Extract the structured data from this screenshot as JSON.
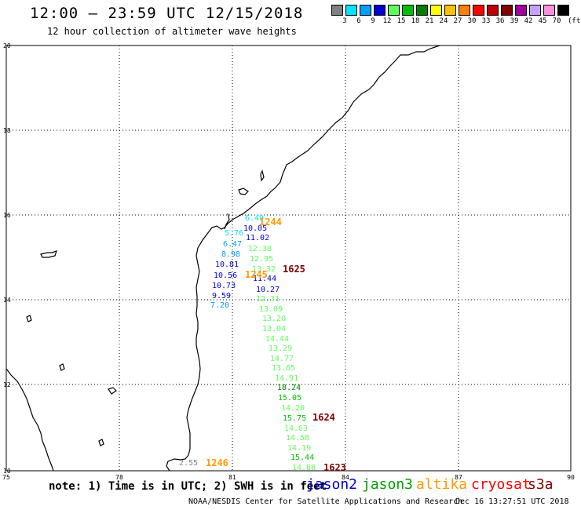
{
  "header": {
    "title": "12:00 – 23:59 UTC 12/15/2018",
    "subtitle": "12 hour collection of altimeter wave heights"
  },
  "legend": {
    "unit": "(ft)",
    "bins": [
      {
        "label": "3",
        "color": "#808080"
      },
      {
        "label": "6",
        "color": "#00e5ff"
      },
      {
        "label": "9",
        "color": "#00a0ff"
      },
      {
        "label": "12",
        "color": "#0000d0"
      },
      {
        "label": "15",
        "color": "#60ff60"
      },
      {
        "label": "18",
        "color": "#00c000"
      },
      {
        "label": "21",
        "color": "#008000"
      },
      {
        "label": "24",
        "color": "#ffff00"
      },
      {
        "label": "27",
        "color": "#ffc000"
      },
      {
        "label": "30",
        "color": "#ff8000"
      },
      {
        "label": "33",
        "color": "#ff0000"
      },
      {
        "label": "36",
        "color": "#c00000"
      },
      {
        "label": "39",
        "color": "#800000"
      },
      {
        "label": "42",
        "color": "#a000a0"
      },
      {
        "label": "45",
        "color": "#c8a0ff"
      },
      {
        "label": "70",
        "color": "#ff90e0"
      },
      {
        "label": "",
        "color": "#000000"
      }
    ]
  },
  "map": {
    "lon_ticks": [
      "75",
      "78",
      "81",
      "84",
      "87",
      "90"
    ],
    "lat_ticks": [
      "20",
      "18",
      "16",
      "14",
      "12",
      "10"
    ],
    "coastline_color": "#000000",
    "grid_color": "#000000"
  },
  "observations": [
    {
      "value": "6.49",
      "color": "#00e5ff"
    },
    {
      "value": "10.05",
      "color": "#0000d0"
    },
    {
      "value": "5.76",
      "color": "#00e5ff"
    },
    {
      "value": "11.02",
      "color": "#0000d0"
    },
    {
      "value": "6.47",
      "color": "#00a0ff"
    },
    {
      "value": "12.38",
      "color": "#60ff60"
    },
    {
      "value": "8.98",
      "color": "#00a0ff"
    },
    {
      "value": "12.95",
      "color": "#60ff60"
    },
    {
      "value": "10.81",
      "color": "#0000d0"
    },
    {
      "value": "13.32",
      "color": "#60ff60"
    },
    {
      "value": "10.56",
      "color": "#0000d0"
    },
    {
      "value": "11.44",
      "color": "#0000d0"
    },
    {
      "value": "10.73",
      "color": "#0000d0"
    },
    {
      "value": "10.27",
      "color": "#0000d0"
    },
    {
      "value": "9.59",
      "color": "#0000d0"
    },
    {
      "value": "12.31",
      "color": "#60ff60"
    },
    {
      "value": "7.20",
      "color": "#00a0ff"
    },
    {
      "value": "13.09",
      "color": "#60ff60"
    },
    {
      "value": "13.20",
      "color": "#60ff60"
    },
    {
      "value": "13.04",
      "color": "#60ff60"
    },
    {
      "value": "14.44",
      "color": "#60ff60"
    },
    {
      "value": "13.29",
      "color": "#60ff60"
    },
    {
      "value": "14.77",
      "color": "#60ff60"
    },
    {
      "value": "13.65",
      "color": "#60ff60"
    },
    {
      "value": "14.91",
      "color": "#60ff60"
    },
    {
      "value": "18.24",
      "color": "#008000"
    },
    {
      "value": "15.05",
      "color": "#00c000"
    },
    {
      "value": "14.20",
      "color": "#60ff60"
    },
    {
      "value": "15.75",
      "color": "#00c000"
    },
    {
      "value": "14.63",
      "color": "#60ff60"
    },
    {
      "value": "14.58",
      "color": "#60ff60"
    },
    {
      "value": "14.19",
      "color": "#60ff60"
    },
    {
      "value": "15.44",
      "color": "#00c000"
    },
    {
      "value": "14.88",
      "color": "#60ff60"
    },
    {
      "value": "2.55",
      "color": "#808080"
    }
  ],
  "pass_times": [
    {
      "value": "1244",
      "color": "#ff9900"
    },
    {
      "value": "1245",
      "color": "#ff9900"
    },
    {
      "value": "1625",
      "color": "#800000"
    },
    {
      "value": "1624",
      "color": "#800000"
    },
    {
      "value": "1246",
      "color": "#ff9900"
    },
    {
      "value": "1623",
      "color": "#800000"
    }
  ],
  "footer": {
    "note": "note: 1) Time is in UTC; 2) SWH is in feet",
    "satellites": [
      {
        "name": "jason2",
        "color": "#0000d0"
      },
      {
        "name": "jason3",
        "color": "#00a000"
      },
      {
        "name": "altika",
        "color": "#ff9900"
      },
      {
        "name": "cryosat",
        "color": "#ff0000"
      },
      {
        "name": "s3a",
        "color": "#800000"
      }
    ],
    "credit": "NOAA/NESDIS Center for Satellite Applications and Research",
    "timestamp": "Dec 16 13:27:51 UTC 2018"
  }
}
